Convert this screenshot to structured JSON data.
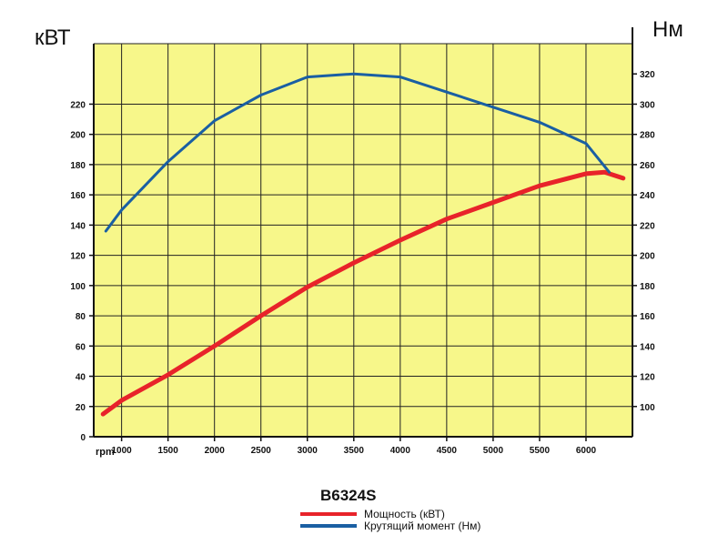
{
  "chart_data": {
    "type": "line",
    "title": "B6324S",
    "xlabel": "rpm",
    "ylabel_left": "кВТ",
    "ylabel_right": "Нм",
    "xlim": [
      700,
      6500
    ],
    "x_ticks": [
      1000,
      1500,
      2000,
      2500,
      3000,
      3500,
      4000,
      4500,
      5000,
      5500,
      6000
    ],
    "ylim_left": [
      0,
      260
    ],
    "y_ticks_left": [
      0,
      20,
      40,
      60,
      80,
      100,
      120,
      140,
      160,
      180,
      200,
      220
    ],
    "ylim_right": [
      80,
      340
    ],
    "y_ticks_right": [
      100,
      120,
      140,
      160,
      180,
      200,
      220,
      240,
      260,
      280,
      300,
      320
    ],
    "grid": true,
    "background_color": "#f7f78a",
    "legend_position": "bottom-center",
    "series": [
      {
        "name": "Мощность (кВТ)",
        "axis": "left",
        "color": "#e8232a",
        "x": [
          800,
          1000,
          1500,
          2000,
          2500,
          3000,
          3500,
          4000,
          4500,
          5000,
          5500,
          6000,
          6200,
          6400
        ],
        "y": [
          15,
          24,
          41,
          60,
          80,
          99,
          115,
          130,
          144,
          155,
          166,
          174,
          175,
          171
        ]
      },
      {
        "name": "Крутящий момент (Нм)",
        "axis": "right",
        "color": "#1a5fa3",
        "x": [
          830,
          1000,
          1500,
          2000,
          2500,
          3000,
          3500,
          4000,
          4500,
          5000,
          5500,
          6000,
          6250
        ],
        "y": [
          216,
          230,
          262,
          289,
          306,
          318,
          320,
          318,
          308,
          298,
          288,
          274,
          255
        ]
      }
    ]
  }
}
